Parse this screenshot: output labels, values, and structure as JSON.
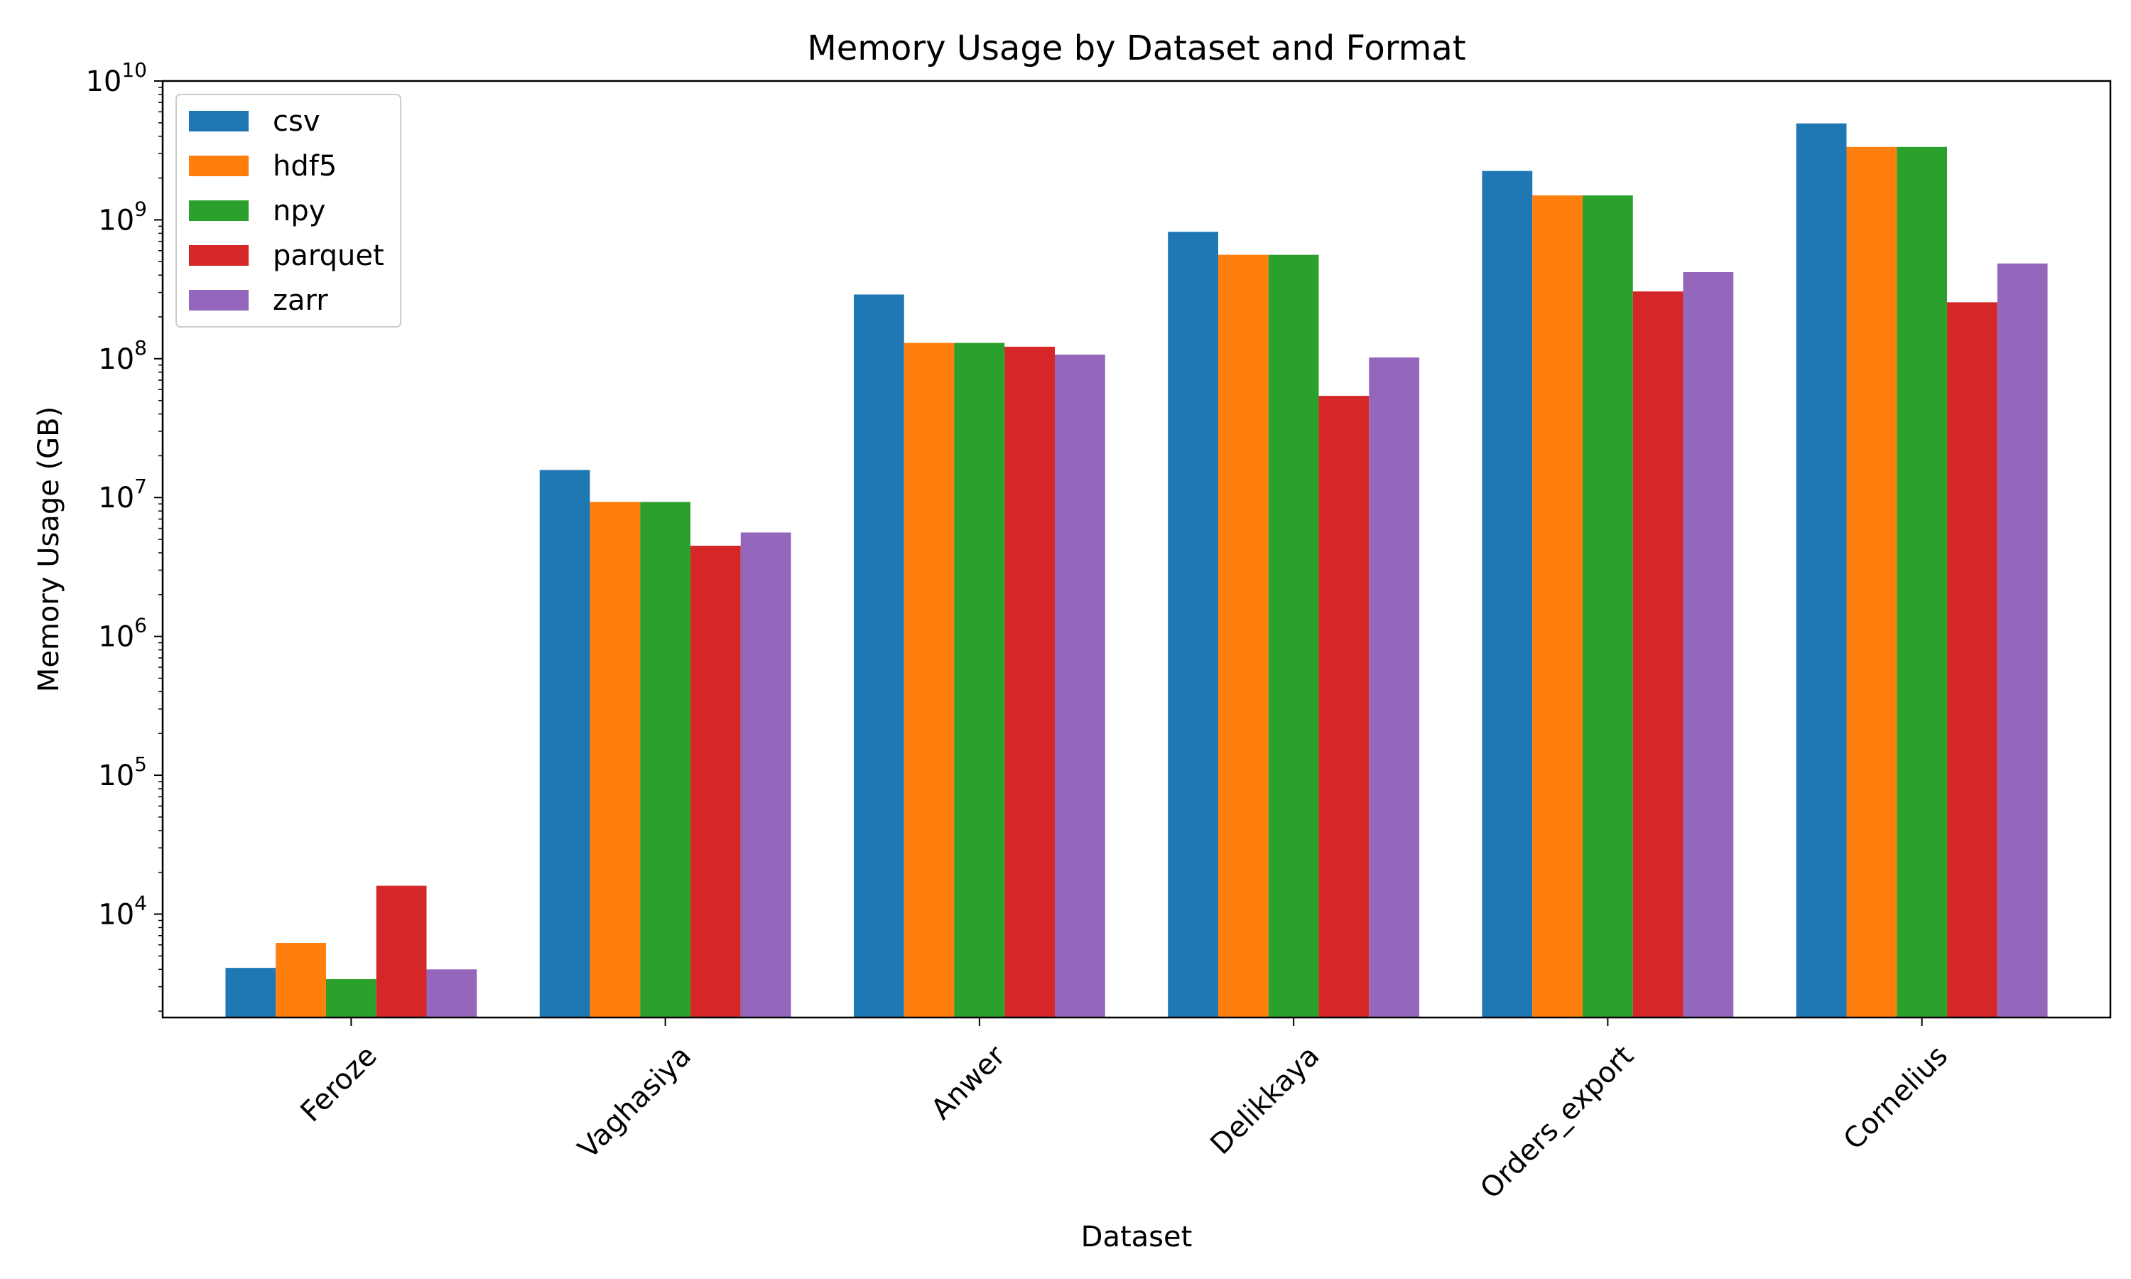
{
  "chart_data": {
    "type": "bar",
    "title": "Memory Usage by Dataset and Format",
    "xlabel": "Dataset",
    "ylabel": "Memory Usage (GB)",
    "yscale": "log",
    "ylim": [
      1800,
      10000000000
    ],
    "ytick_values": [
      10000,
      100000,
      1000000,
      10000000,
      100000000,
      1000000000,
      10000000000
    ],
    "ytick_labels": [
      {
        "base": "10",
        "exp": "4"
      },
      {
        "base": "10",
        "exp": "5"
      },
      {
        "base": "10",
        "exp": "6"
      },
      {
        "base": "10",
        "exp": "7"
      },
      {
        "base": "10",
        "exp": "8"
      },
      {
        "base": "10",
        "exp": "9"
      },
      {
        "base": "10",
        "exp": "10"
      }
    ],
    "categories": [
      "Feroze",
      "Vaghasiya",
      "Anwer",
      "Delikkaya",
      "Orders_export",
      "Cornelius"
    ],
    "legend_position": "upper-left",
    "grid": false,
    "series": [
      {
        "name": "csv",
        "color": "#1f77b4",
        "values": [
          4100,
          15800000,
          290000000,
          820000000,
          2250000000,
          4950000000
        ]
      },
      {
        "name": "hdf5",
        "color": "#ff7f0e",
        "values": [
          6200,
          9300000,
          130000000,
          560000000,
          1500000000,
          3350000000
        ]
      },
      {
        "name": "npy",
        "color": "#2ca02c",
        "values": [
          3400,
          9300000,
          130000000,
          560000000,
          1500000000,
          3350000000
        ]
      },
      {
        "name": "parquet",
        "color": "#d62728",
        "values": [
          16000,
          4500000,
          122000000,
          54000000,
          305000000,
          255000000
        ]
      },
      {
        "name": "zarr",
        "color": "#9467bd",
        "values": [
          4000,
          5600000,
          107000000,
          102000000,
          420000000,
          485000000
        ]
      }
    ]
  }
}
